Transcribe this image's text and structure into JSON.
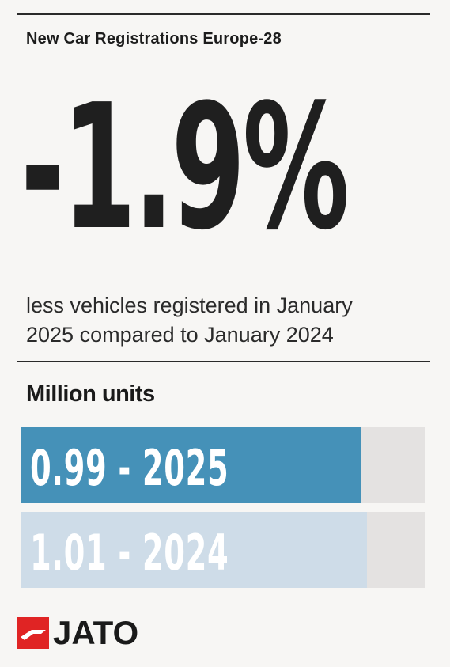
{
  "header": {
    "title": "New Car Registrations Europe-28"
  },
  "stat": {
    "value": "-1.9%",
    "description_line1": "less vehicles registered in January",
    "description_line2": "2025 compared to January 2024"
  },
  "chart_data": {
    "type": "bar",
    "title": "Million units",
    "orientation": "horizontal",
    "xlim": [
      0,
      1.18
    ],
    "bars": [
      {
        "category": "2025",
        "value": 0.99,
        "label": "0.99 - 2025",
        "color": "#4591b8"
      },
      {
        "category": "2024",
        "value": 1.01,
        "label": "1.01 - 2024",
        "color": "#cedce8"
      }
    ],
    "track_color": "#e4e2e1"
  },
  "logo": {
    "text": "JATO",
    "mark_color": "#e02424"
  },
  "colors": {
    "background": "#f7f6f4",
    "text": "#1c1c1c"
  }
}
